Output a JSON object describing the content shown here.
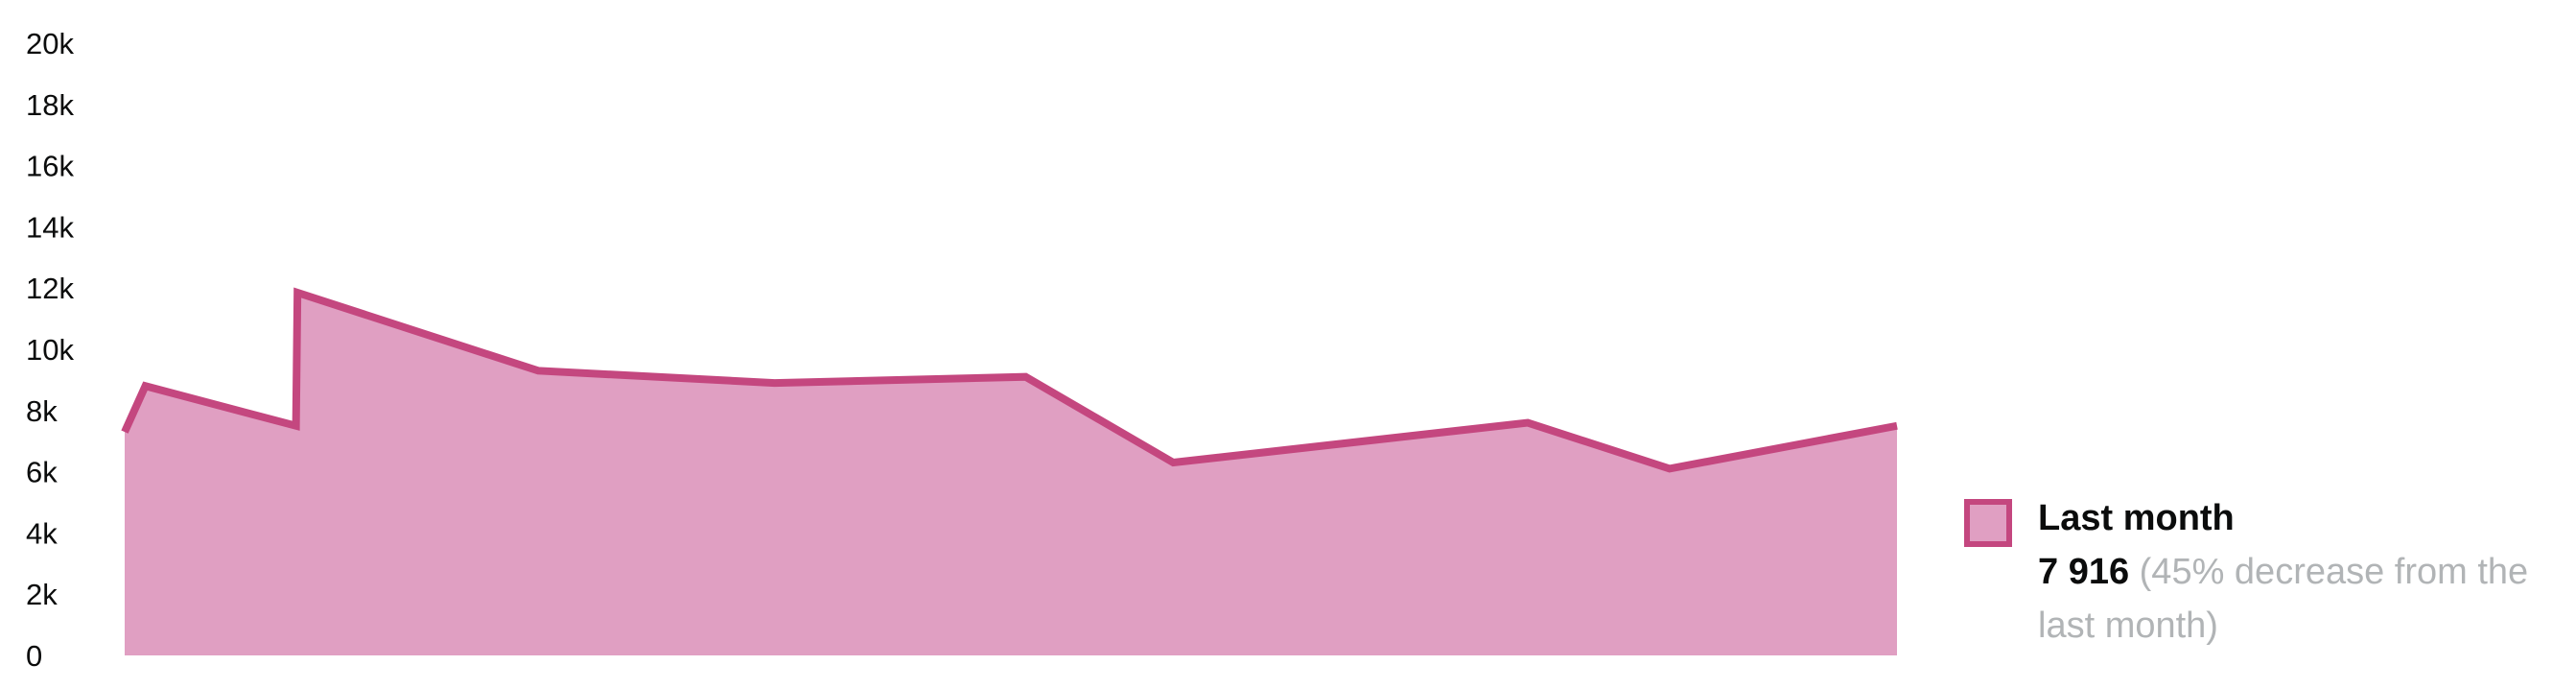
{
  "chart_data": {
    "type": "area",
    "title": "",
    "xlabel": "",
    "ylabel": "",
    "ylim": [
      0,
      20000
    ],
    "y_ticks": [
      0,
      2000,
      4000,
      6000,
      8000,
      10000,
      12000,
      14000,
      16000,
      18000,
      20000
    ],
    "y_tick_labels": [
      "0",
      "2k",
      "4k",
      "6k",
      "8k",
      "10k",
      "12k",
      "14k",
      "16k",
      "18k",
      "20k"
    ],
    "grid": false,
    "legend_position": "bottom-right",
    "series": [
      {
        "name": "Last month",
        "color": "#c4477f",
        "fill_color": "#e09fc2",
        "points": [
          {
            "x": 0,
            "y": 7300
          },
          {
            "x": 0.7,
            "y": 8800
          },
          {
            "x": 5.8,
            "y": 7500
          },
          {
            "x": 5.85,
            "y": 11850
          },
          {
            "x": 14,
            "y": 9300
          },
          {
            "x": 22,
            "y": 8900
          },
          {
            "x": 30.5,
            "y": 9100
          },
          {
            "x": 35.5,
            "y": 6300
          },
          {
            "x": 47.5,
            "y": 7600
          },
          {
            "x": 52.3,
            "y": 6100
          },
          {
            "x": 60,
            "y": 7500
          }
        ]
      }
    ],
    "xlim": [
      0,
      60
    ]
  },
  "legend": {
    "label": "Last month",
    "value": "7 916",
    "change": "(45% decrease from the last month)"
  }
}
